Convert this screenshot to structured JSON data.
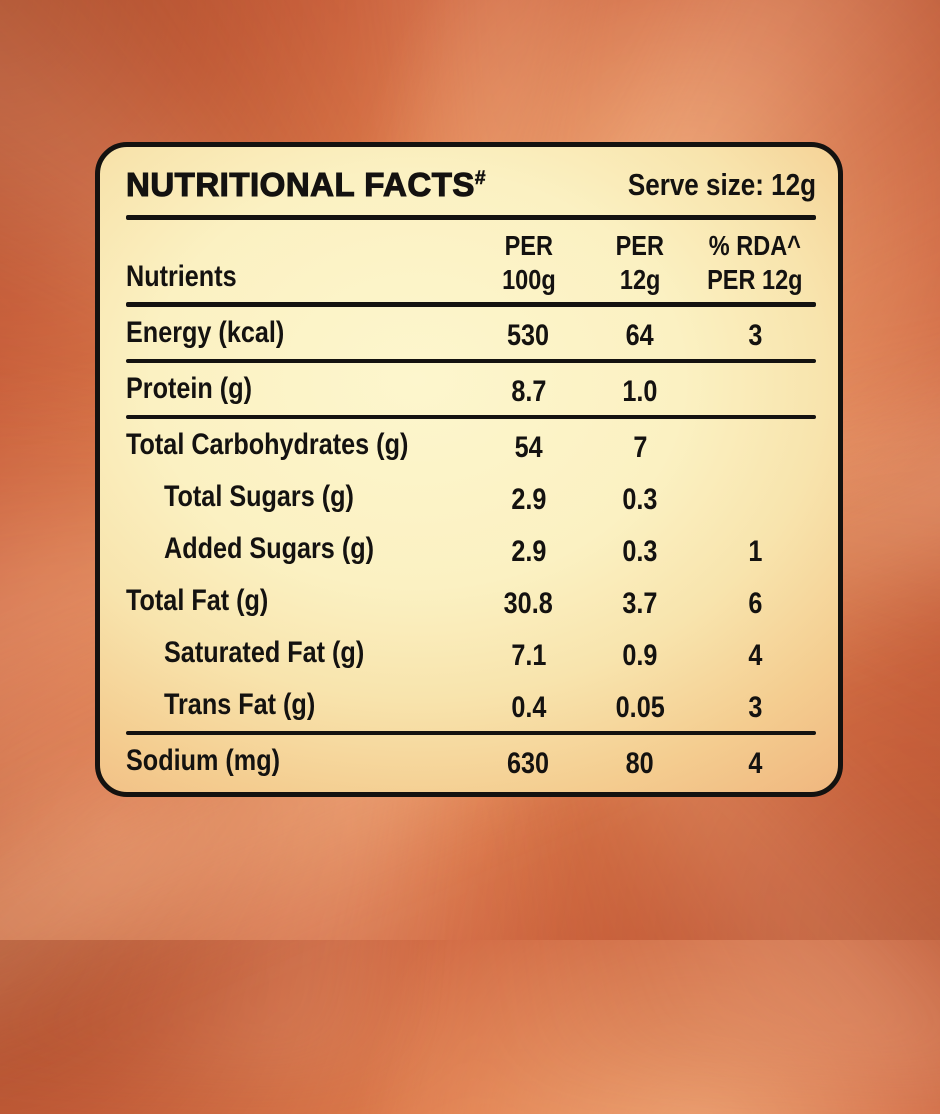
{
  "label": {
    "title": "NUTRITIONAL FACTS",
    "title_superscript": "#",
    "serve_size": "Serve size: 12g",
    "columns": {
      "nutrients_header": "Nutrients",
      "col1_line1": "PER",
      "col1_line2": "100g",
      "col2_line1": "PER",
      "col2_line2": "12g",
      "col3_line1": "% RDA^",
      "col3_line2": "PER 12g"
    },
    "rows": [
      {
        "label": "Energy (kcal)",
        "indent": false,
        "per_100g": "530",
        "per_12g": "64",
        "rda_per_12g": "3",
        "separator_after": true
      },
      {
        "label": "Protein (g)",
        "indent": false,
        "per_100g": "8.7",
        "per_12g": "1.0",
        "rda_per_12g": "",
        "separator_after": true
      },
      {
        "label": "Total Carbohydrates (g)",
        "indent": false,
        "per_100g": "54",
        "per_12g": "7",
        "rda_per_12g": "",
        "separator_after": false
      },
      {
        "label": "Total Sugars (g)",
        "indent": true,
        "per_100g": "2.9",
        "per_12g": "0.3",
        "rda_per_12g": "",
        "separator_after": false
      },
      {
        "label": "Added Sugars (g)",
        "indent": true,
        "per_100g": "2.9",
        "per_12g": "0.3",
        "rda_per_12g": "1",
        "separator_after": false
      },
      {
        "label": "Total Fat (g)",
        "indent": false,
        "per_100g": "30.8",
        "per_12g": "3.7",
        "rda_per_12g": "6",
        "separator_after": false
      },
      {
        "label": "Saturated Fat (g)",
        "indent": true,
        "per_100g": "7.1",
        "per_12g": "0.9",
        "rda_per_12g": "4",
        "separator_after": false
      },
      {
        "label": "Trans Fat (g)",
        "indent": true,
        "per_100g": "0.4",
        "per_12g": "0.05",
        "rda_per_12g": "3",
        "separator_after": true
      },
      {
        "label": "Sodium (mg)",
        "indent": false,
        "per_100g": "630",
        "per_12g": "80",
        "rda_per_12g": "4",
        "separator_after": false
      }
    ]
  },
  "colors": {
    "background_orange": "#df7c4c",
    "background_orange_dark": "#c05c3a",
    "background_orange_light": "#ea9260",
    "panel_cream_center": "#fbf1c2",
    "panel_orange_edge": "#efb27b",
    "ink": "#141210"
  }
}
